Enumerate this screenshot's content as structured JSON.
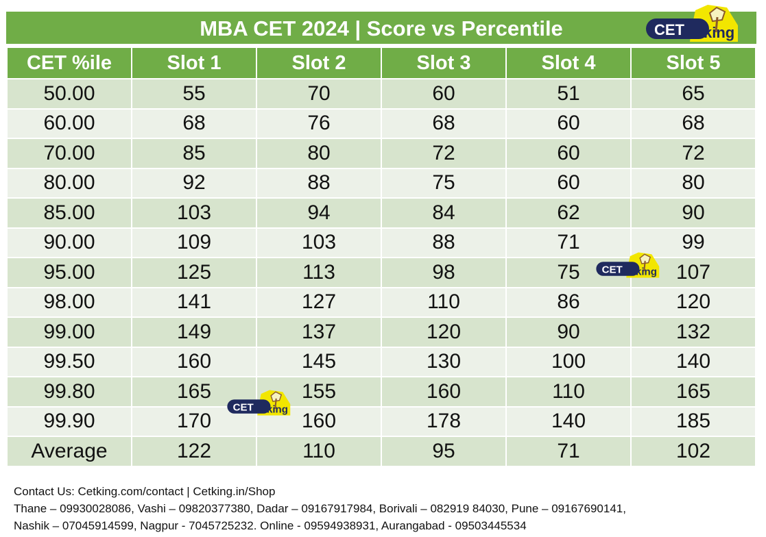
{
  "header": {
    "title": "MBA CET 2024 | Score vs Percentile",
    "logo_text_1": "CET",
    "logo_text_2": "king"
  },
  "table": {
    "columns": [
      "CET %ile",
      "Slot 1",
      "Slot 2",
      "Slot 3",
      "Slot 4",
      "Slot 5"
    ],
    "rows": [
      [
        "50.00",
        "55",
        "70",
        "60",
        "51",
        "65"
      ],
      [
        "60.00",
        "68",
        "76",
        "68",
        "60",
        "68"
      ],
      [
        "70.00",
        "85",
        "80",
        "72",
        "60",
        "72"
      ],
      [
        "80.00",
        "92",
        "88",
        "75",
        "60",
        "80"
      ],
      [
        "85.00",
        "103",
        "94",
        "84",
        "62",
        "90"
      ],
      [
        "90.00",
        "109",
        "103",
        "88",
        "71",
        "99"
      ],
      [
        "95.00",
        "125",
        "113",
        "98",
        "75",
        "107"
      ],
      [
        "98.00",
        "141",
        "127",
        "110",
        "86",
        "120"
      ],
      [
        "99.00",
        "149",
        "137",
        "120",
        "90",
        "132"
      ],
      [
        "99.50",
        "160",
        "145",
        "130",
        "100",
        "140"
      ],
      [
        "99.80",
        "165",
        "155",
        "160",
        "110",
        "165"
      ],
      [
        "99.90",
        "170",
        "160",
        "178",
        "140",
        "185"
      ],
      [
        "Average",
        "122",
        "110",
        "95",
        "71",
        "102"
      ]
    ]
  },
  "footer": {
    "line1": "Contact Us: Cetking.com/contact | Cetking.in/Shop",
    "line2": "Thane – 09930028086, Vashi – 09820377380, Dadar – 09167917984,  Borivali – 082919 84030, Pune – 09167690141,",
    "line3": "Nashik – 07045914599, Nagpur - 7045725232.  Online - 09594938931, Aurangabad - 09503445534"
  },
  "colors": {
    "header_green": "#70ad47",
    "row_dark": "#d7e4cd",
    "row_light": "#ecf1e8",
    "logo_navy": "#1f2a5e",
    "logo_yellow": "#f2e600"
  }
}
